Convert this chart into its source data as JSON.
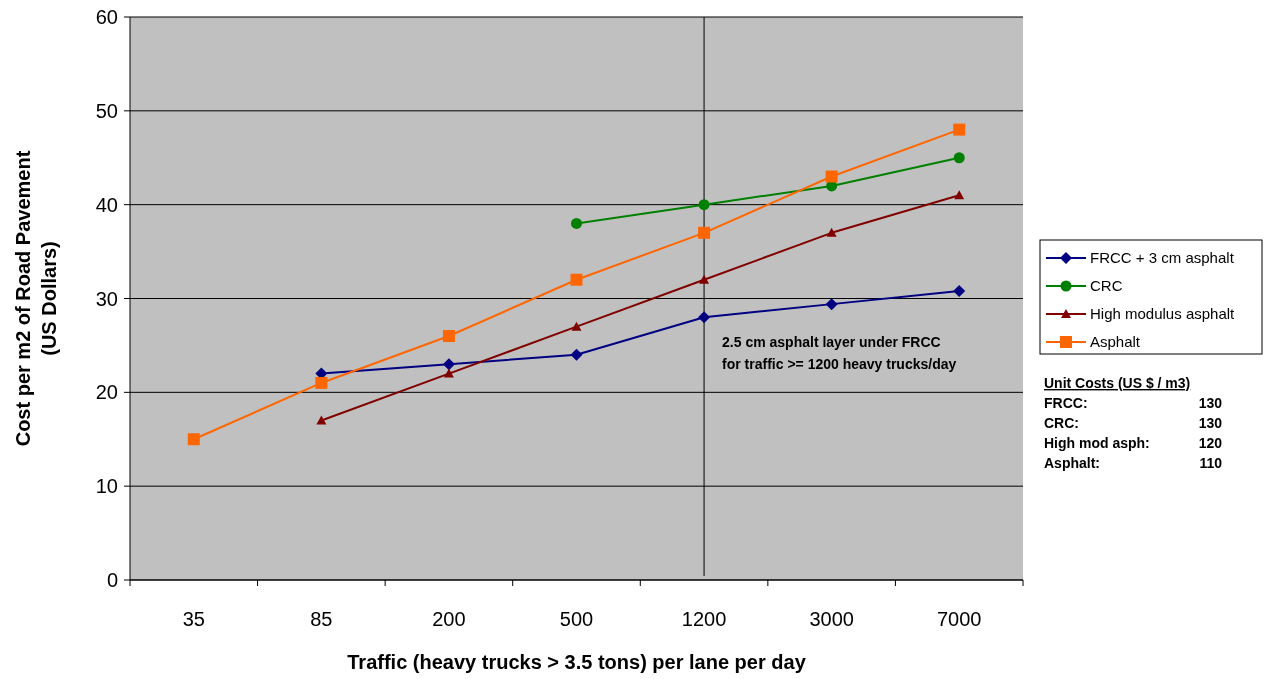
{
  "chart_data": {
    "type": "line",
    "xlabel": "Traffic (heavy trucks > 3.5 tons) per lane per day",
    "ylabel": "Cost per m2 of Road Pavement\n(US Dollars)",
    "categories": [
      "35",
      "85",
      "200",
      "500",
      "1200",
      "3000",
      "7000"
    ],
    "series": [
      {
        "name": "FRCC + 3 cm asphalt",
        "color": "#000080",
        "marker": "diamond",
        "values": [
          null,
          22,
          23,
          24,
          28,
          29.4,
          30.8
        ]
      },
      {
        "name": "CRC",
        "color": "#008000",
        "marker": "circle",
        "values": [
          null,
          null,
          null,
          38,
          40,
          42,
          45
        ]
      },
      {
        "name": "High modulus asphalt",
        "color": "#800000",
        "marker": "triangle",
        "values": [
          null,
          17,
          22,
          27,
          32,
          37,
          41
        ]
      },
      {
        "name": "Asphalt",
        "color": "#ff6600",
        "marker": "square",
        "values": [
          15,
          21,
          26,
          32,
          37,
          43,
          48
        ]
      }
    ],
    "ylim": [
      0,
      60
    ],
    "yticks": [
      0,
      10,
      20,
      30,
      40,
      50,
      60
    ],
    "grid": "y",
    "legend": "right",
    "ref_lines": [
      {
        "axis": "x",
        "value": "1200",
        "color": "#000000"
      }
    ],
    "annotations": [
      {
        "text": "2.5 cm  asphalt layer under FRCC\nfor traffic >= 1200 heavy trucks/day",
        "x": "1200",
        "y": 25
      },
      "Unit Costs (US $ / m3)",
      "FRCC: 130",
      "CRC: 130",
      "High mod asph: 120",
      "Asphalt: 110"
    ]
  }
}
